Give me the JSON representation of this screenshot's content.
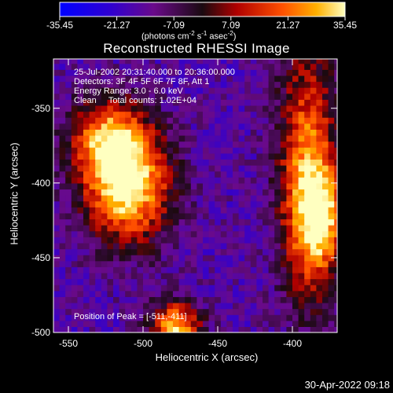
{
  "chart_data": {
    "type": "heatmap",
    "title": "Reconstructed RHESSI Image",
    "xlabel": "Heliocentric X (arcsec)",
    "ylabel": "Heliocentric Y (arcsec)",
    "xlim": [
      -560,
      -370
    ],
    "ylim": [
      -500,
      -317
    ],
    "xticks": [
      "-550",
      "-500",
      "-450",
      "-400"
    ],
    "xtick_values": [
      -550,
      -500,
      -450,
      -400
    ],
    "yticks": [
      "-350",
      "-400",
      "-450",
      "-500"
    ],
    "ytick_values": [
      -350,
      -400,
      -450,
      -500
    ],
    "colorbar": {
      "ticks": [
        "-35.45",
        "-21.27",
        "-7.09",
        "7.09",
        "21.27",
        "35.45"
      ],
      "tick_values": [
        -35.45,
        -21.27,
        -7.09,
        7.09,
        21.27,
        35.45
      ],
      "range": [
        -35.45,
        35.45
      ],
      "unit_base": "(photons cm",
      "unit_exp1": "-2",
      "unit_mid": " s",
      "unit_exp2": "-1",
      "unit_end": " asec",
      "unit_exp3": "-2",
      "unit_close": ")"
    },
    "annotations": [
      "25-Jul-2002 20:31:40.000 to 20:36:00.000",
      "Detectors: 3F 4F 5F 6F 7F 8F, Att 1",
      "Energy Range: 3.0 - 6.0 keV",
      "Clean     Total counts: 1.02E+04"
    ],
    "peak_label": "Position of Peak = [-511,-411]",
    "sources": [
      {
        "x": -512,
        "y": -405,
        "sx": 20,
        "sy": 26,
        "peak": 35.45
      },
      {
        "x": -525,
        "y": -372,
        "sx": 18,
        "sy": 20,
        "peak": 22.0
      },
      {
        "x": -392,
        "y": -395,
        "sx": 14,
        "sy": 60,
        "peak": 24.0
      },
      {
        "x": -382,
        "y": -425,
        "sx": 12,
        "sy": 25,
        "peak": 18.0
      },
      {
        "x": -480,
        "y": -498,
        "sx": 12,
        "sy": 12,
        "peak": 30.0
      }
    ],
    "background": -15
  },
  "timestamp": "30-Apr-2022 09:18"
}
